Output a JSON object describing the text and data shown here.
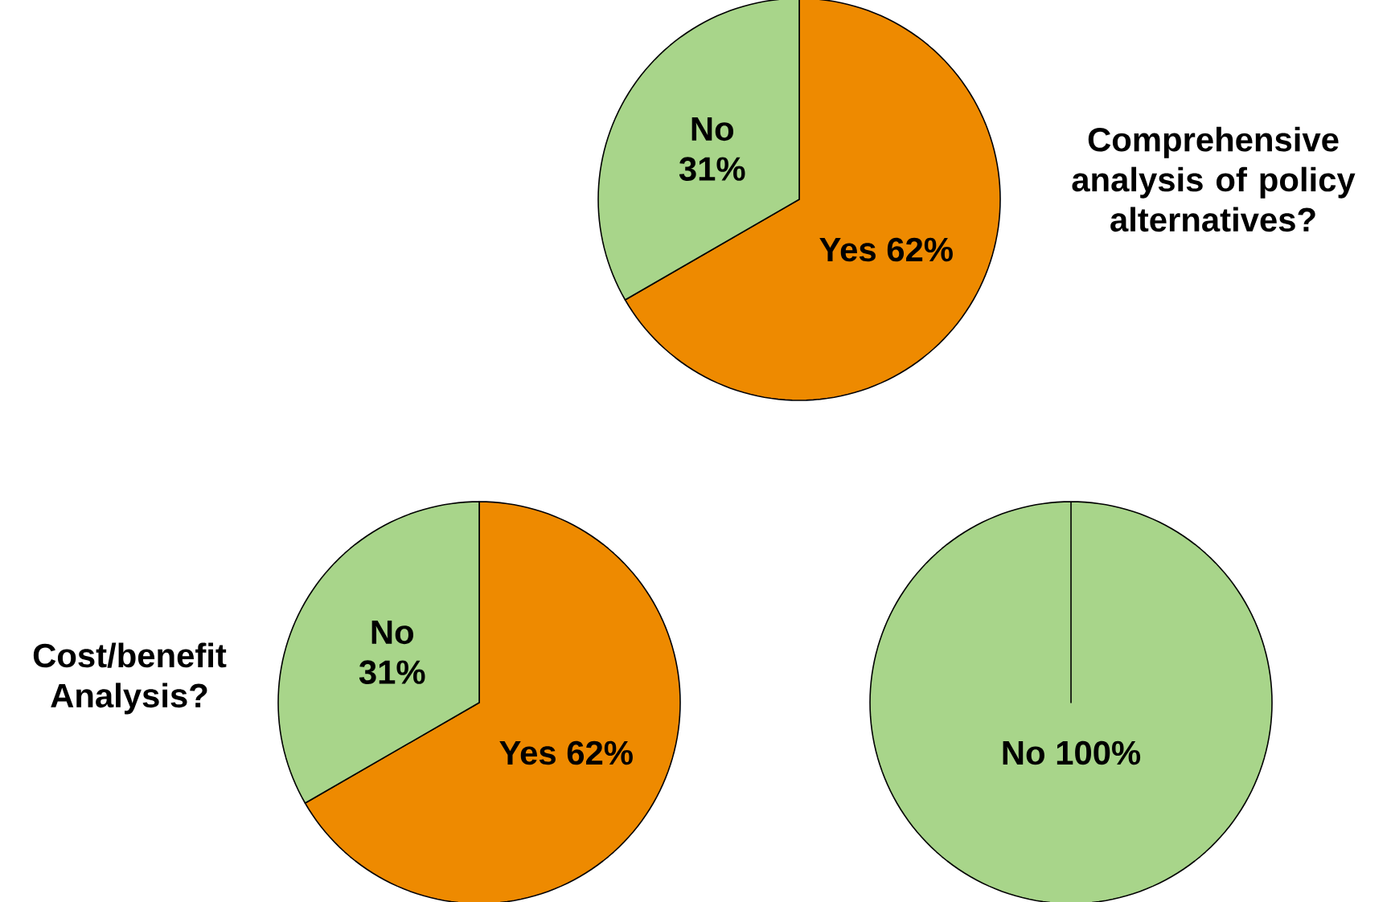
{
  "chart_data": [
    {
      "type": "pie",
      "title": "Comprehensive analysis of policy alternatives?",
      "categories": [
        "Yes",
        "No"
      ],
      "values": [
        62,
        31
      ],
      "value_labels": [
        "62%",
        "31%"
      ],
      "colors": [
        "#ee8a00",
        "#a8d58a"
      ]
    },
    {
      "type": "pie",
      "title": "Cost/benefit Analysis?",
      "categories": [
        "Yes",
        "No"
      ],
      "values": [
        62,
        31
      ],
      "value_labels": [
        "62%",
        "31%"
      ],
      "colors": [
        "#ee8a00",
        "#a8d58a"
      ]
    },
    {
      "type": "pie",
      "categories": [
        "No"
      ],
      "values": [
        100
      ],
      "value_labels": [
        "100%"
      ],
      "colors": [
        "#a8d58a"
      ]
    }
  ]
}
